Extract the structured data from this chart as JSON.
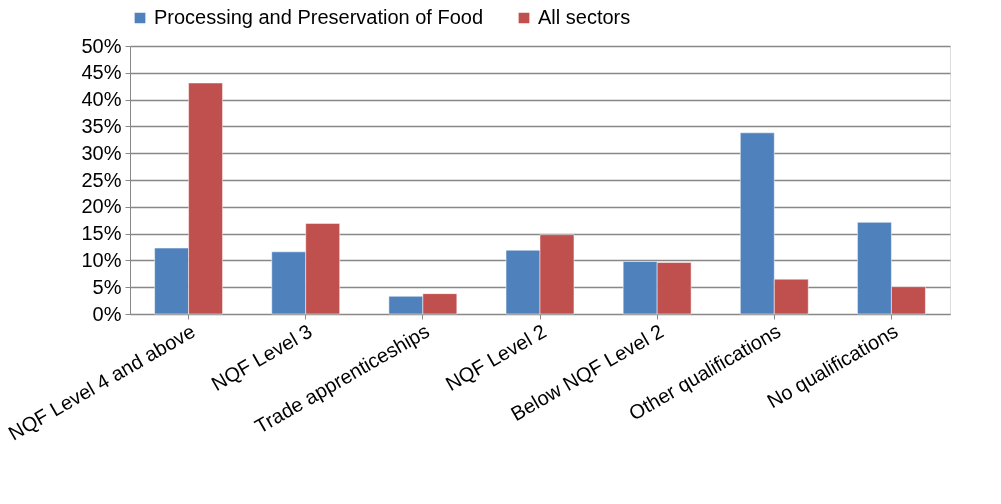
{
  "chart_data": {
    "type": "bar",
    "categories": [
      "NQF Level 4 and above",
      "NQF Level 3",
      "Trade apprenticeships",
      "NQF Level 2",
      "Below NQF Level 2",
      "Other qualifications",
      "No qualifications"
    ],
    "series": [
      {
        "name": "Processing and Preservation of Food",
        "color": "#4f81bd",
        "values": [
          12.3,
          11.6,
          3.3,
          11.9,
          9.8,
          33.8,
          17.1
        ]
      },
      {
        "name": "All sectors",
        "color": "#c0504d",
        "values": [
          43.1,
          16.9,
          3.8,
          14.8,
          9.6,
          6.5,
          5.1
        ]
      }
    ],
    "ylim": [
      0,
      50
    ],
    "yticks": [
      {
        "value": 0,
        "label": "0%"
      },
      {
        "value": 5,
        "label": "5%"
      },
      {
        "value": 10,
        "label": "10%"
      },
      {
        "value": 15,
        "label": "15%"
      },
      {
        "value": 20,
        "label": "20%"
      },
      {
        "value": 25,
        "label": "25%"
      },
      {
        "value": 30,
        "label": "30%"
      },
      {
        "value": 35,
        "label": "35%"
      },
      {
        "value": 40,
        "label": "40%"
      },
      {
        "value": 45,
        "label": "45%"
      },
      {
        "value": 50,
        "label": "50%"
      }
    ],
    "grid": "y",
    "legend": "top"
  }
}
